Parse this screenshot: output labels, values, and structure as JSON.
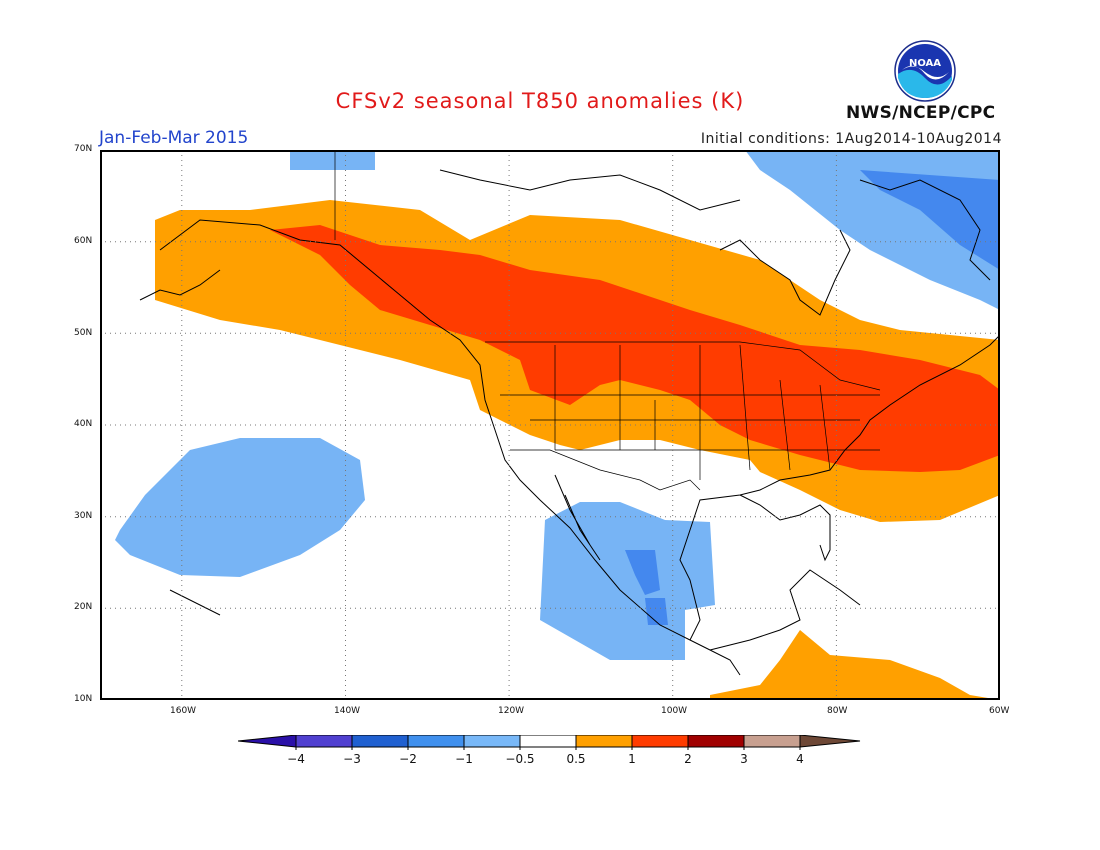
{
  "header": {
    "title": "CFSv2 seasonal T850 anomalies (K)",
    "period": "Jan-Feb-Mar 2015",
    "initial_conditions": "Initial conditions: 1Aug2014-10Aug2014",
    "agency": "NWS/NCEP/CPC",
    "logo_text": "NOAA"
  },
  "map": {
    "lat_labels": [
      "70N",
      "60N",
      "50N",
      "40N",
      "30N",
      "20N",
      "10N"
    ],
    "lon_labels": [
      "160W",
      "140W",
      "120W",
      "100W",
      "80W",
      "60W"
    ],
    "lat_range": [
      10,
      70
    ],
    "lon_range": [
      -170,
      -60
    ],
    "grid": true,
    "colors": {
      "neg_strong": "#4488ee",
      "neg_weak": "#77b4f5",
      "pos_weak": "#ffa000",
      "pos_mod": "#ff3c00",
      "coast": "#000000"
    }
  },
  "colorbar": {
    "labels": [
      "−4",
      "−3",
      "−2",
      "−1",
      "−0.5",
      "0.5",
      "1",
      "2",
      "3",
      "4"
    ],
    "colors": [
      "#2a10a8",
      "#5040d0",
      "#2060d0",
      "#4090ee",
      "#78b8f8",
      "#ffffff",
      "#ffa000",
      "#ff3c00",
      "#a00000",
      "#c8a090",
      "#6e4836"
    ]
  }
}
